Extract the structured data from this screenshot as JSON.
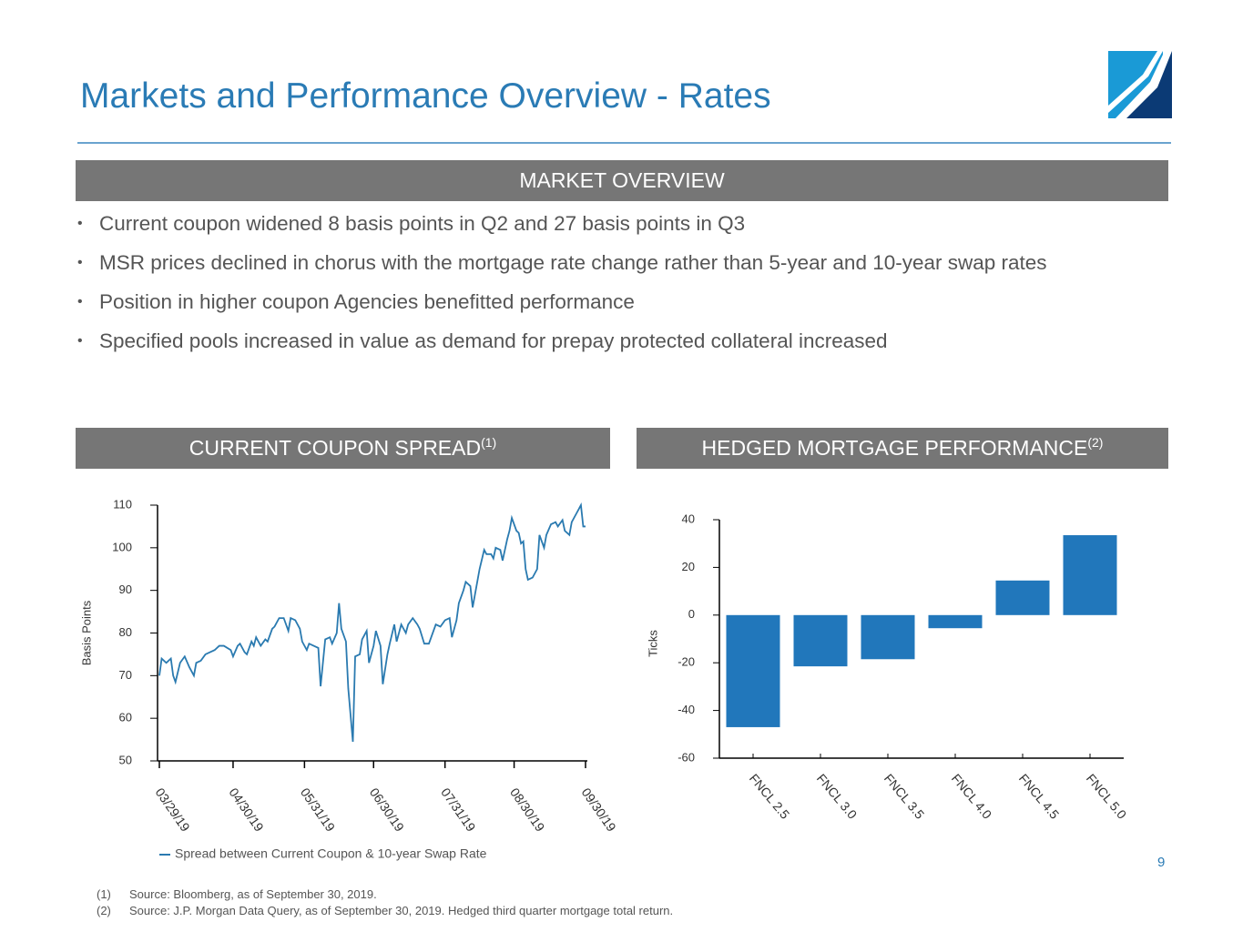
{
  "header": {
    "title": "Markets and Performance Overview - Rates"
  },
  "market_overview": {
    "heading": "MARKET OVERVIEW",
    "bullets": [
      "Current coupon widened 8 basis points in Q2 and 27 basis points in Q3",
      "MSR prices declined in chorus with the mortgage rate change rather than 5-year and 10-year swap rates",
      "Position in higher coupon Agencies benefitted performance",
      "Specified pools increased in value as demand for prepay protected collateral increased"
    ]
  },
  "chart_data": [
    {
      "type": "line",
      "title": "CURRENT COUPON SPREAD",
      "title_note": "(1)",
      "ylabel": "Basis Points",
      "legend": "bottom-left",
      "x": [
        "03/29/19",
        "03/30/19",
        "04/01/19",
        "04/03/19",
        "04/04/19",
        "04/05/19",
        "04/07/19",
        "04/09/19",
        "04/11/19",
        "04/13/19",
        "04/14/19",
        "04/16/19",
        "04/18/19",
        "04/20/19",
        "04/22/19",
        "04/24/19",
        "04/26/19",
        "04/29/19",
        "04/30/19",
        "05/02/19",
        "05/03/19",
        "05/05/19",
        "05/06/19",
        "05/08/19",
        "05/09/19",
        "05/10/19",
        "05/12/19",
        "05/14/19",
        "05/15/19",
        "05/17/19",
        "05/18/19",
        "05/20/19",
        "05/22/19",
        "05/24/19",
        "05/25/19",
        "05/27/19",
        "05/29/19",
        "05/30/19",
        "06/01/19",
        "06/02/19",
        "06/04/19",
        "06/06/19",
        "06/07/19",
        "06/09/19",
        "06/11/19",
        "06/12/19",
        "06/14/19",
        "06/15/19",
        "06/16/19",
        "06/18/19",
        "06/19/19",
        "06/21/19",
        "06/22/19",
        "06/24/19",
        "06/25/19",
        "06/27/19",
        "06/28/19",
        "06/30/19",
        "07/01/19",
        "07/03/19",
        "07/04/19",
        "07/06/19",
        "07/07/19",
        "07/09/19",
        "07/10/19",
        "07/12/19",
        "07/14/19",
        "07/15/19",
        "07/17/19",
        "07/19/19",
        "07/20/19",
        "07/22/19",
        "07/24/19",
        "07/25/19",
        "07/27/19",
        "07/29/19",
        "07/31/19",
        "08/02/19",
        "08/03/19",
        "08/05/19",
        "08/06/19",
        "08/08/19",
        "08/09/19",
        "08/11/19",
        "08/12/19",
        "08/14/19",
        "08/15/19",
        "08/17/19",
        "08/18/19",
        "08/20/19",
        "08/21/19",
        "08/22/19",
        "08/24/19",
        "08/25/19",
        "08/27/19",
        "08/28/19",
        "08/29/19",
        "08/31/19",
        "09/01/19",
        "09/02/19",
        "09/03/19",
        "09/04/19",
        "09/05/19",
        "09/07/19",
        "09/09/19",
        "09/10/19",
        "09/12/19",
        "09/13/19",
        "09/15/19",
        "09/17/19",
        "09/18/19",
        "09/20/19",
        "09/21/19",
        "09/23/19",
        "09/24/19",
        "09/26/19",
        "09/28/19",
        "09/29/19",
        "09/30/19"
      ],
      "series": [
        {
          "name": "Spread between Current Coupon & 10-year Swap Rate",
          "color": "#2a7ab0",
          "values": [
            70,
            74,
            73,
            74,
            70,
            68.5,
            73,
            74.5,
            72,
            70,
            73,
            73.5,
            75,
            75.5,
            76,
            77,
            77,
            76,
            74.5,
            77,
            77.5,
            75.5,
            75,
            78,
            77,
            79,
            77,
            78.5,
            78,
            81,
            81.5,
            83.5,
            83.5,
            80.5,
            83.5,
            83,
            81,
            78,
            76,
            77.5,
            77,
            76.5,
            67.5,
            78.5,
            79,
            77.5,
            80,
            87,
            81,
            78,
            67,
            54.5,
            74.5,
            75,
            78.5,
            80.5,
            73,
            77,
            80.5,
            77,
            68,
            75,
            77.5,
            82,
            78,
            82,
            80,
            82,
            83.5,
            82,
            81,
            77.5,
            77.5,
            79,
            82,
            81.5,
            83,
            83.5,
            79,
            83,
            87,
            90,
            92,
            91,
            86,
            92,
            95,
            99.5,
            98.5,
            98.5,
            97.5,
            100,
            99.5,
            97,
            102,
            104,
            107,
            104,
            103.5,
            101,
            101.5,
            95,
            92.5,
            93,
            95,
            103,
            100,
            103,
            105.5,
            106,
            105,
            106.5,
            104,
            103,
            106,
            108,
            110,
            105,
            105
          ]
        }
      ],
      "xlim": [
        "03/29/19",
        "09/30/19"
      ],
      "xticks": [
        "03/29/19",
        "04/30/19",
        "05/31/19",
        "06/30/19",
        "07/31/19",
        "08/30/19",
        "09/30/19"
      ],
      "ylim": [
        50,
        110
      ],
      "yticks": [
        50,
        60,
        70,
        80,
        90,
        100,
        110
      ]
    },
    {
      "type": "bar",
      "title": "HEDGED MORTGAGE PERFORMANCE",
      "title_note": "(2)",
      "ylabel": "Ticks",
      "categories": [
        "FNCL 2.5",
        "FNCL 3.0",
        "FNCL 3.5",
        "FNCL 4.0",
        "FNCL 4.5",
        "FNCL 5.0"
      ],
      "values": [
        -47,
        -21.5,
        -18.5,
        -5.5,
        14.5,
        33.5
      ],
      "color": "#2177bb",
      "ylim": [
        -60,
        40
      ],
      "yticks": [
        -60,
        -40,
        -20,
        0,
        20,
        40
      ]
    }
  ],
  "footnotes": [
    {
      "marker": "(1)",
      "text": "Source: Bloomberg, as of September 30, 2019."
    },
    {
      "marker": "(2)",
      "text": "Source: J.P. Morgan Data Query, as of September 30, 2019. Hedged third quarter mortgage total return."
    }
  ],
  "page_number": "9"
}
